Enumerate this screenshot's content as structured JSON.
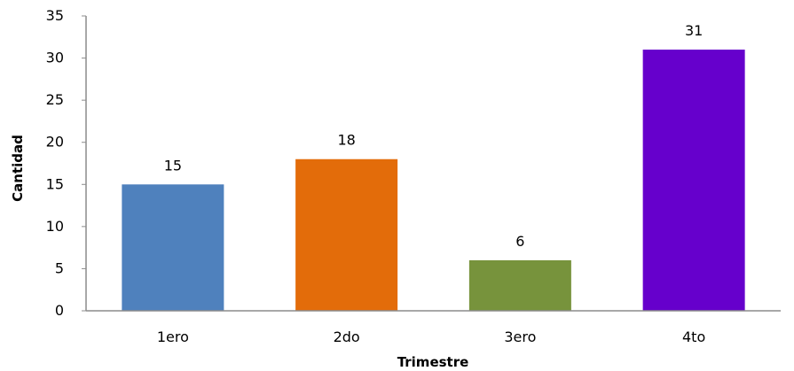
{
  "chart_data": {
    "type": "bar",
    "title": "",
    "xlabel": "Trimestre",
    "ylabel": "Cantidad",
    "categories": [
      "1ero",
      "2do",
      "3ero",
      "4to"
    ],
    "values": [
      15,
      18,
      6,
      31
    ],
    "colors": [
      "#4f81bd",
      "#e36c0a",
      "#77933c",
      "#6600cc"
    ],
    "ylim": [
      0,
      35
    ],
    "yticks": [
      0,
      5,
      10,
      15,
      20,
      25,
      30,
      35
    ],
    "data_labels": true,
    "grid": false,
    "legend": "none"
  }
}
